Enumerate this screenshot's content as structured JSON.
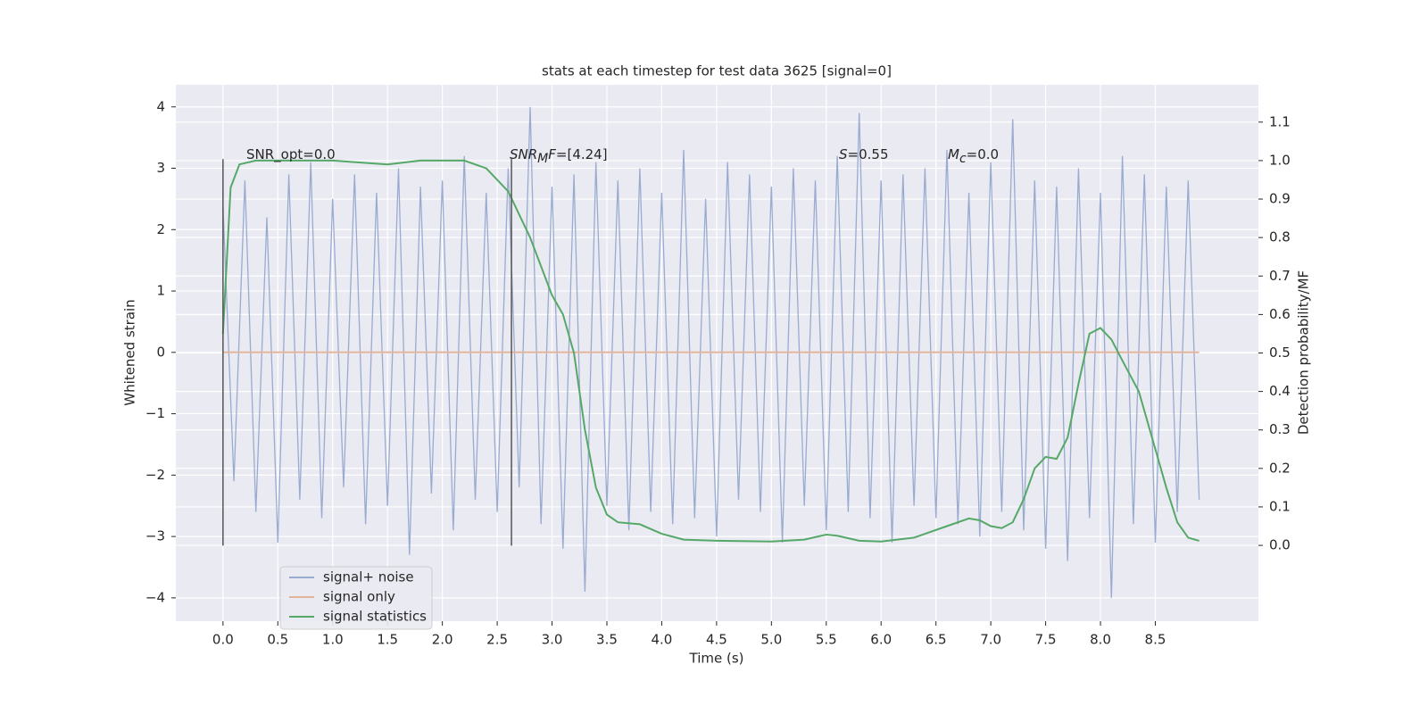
{
  "chart_data": {
    "type": "line",
    "title": "stats at each timestep for test data 3625 [signal=0]",
    "xlabel": "Time (s)",
    "ylabel": "Whitened strain",
    "y2label": "Detection probability/MF",
    "xlim": [
      -0.43,
      9.44
    ],
    "ylim": [
      -4.38,
      4.36
    ],
    "y2lim": [
      -0.197,
      1.197
    ],
    "xticks": [
      {
        "value": 0,
        "label": "0.0"
      },
      0.5,
      {
        "value": 1,
        "label": "1.0"
      },
      1.5,
      {
        "value": 2,
        "label": "2.0"
      },
      2.5,
      {
        "value": 3,
        "label": "3.0"
      },
      3.5,
      {
        "value": 4,
        "label": "4.0"
      },
      4.5,
      {
        "value": 5,
        "label": "5.0"
      },
      5.5,
      {
        "value": 6,
        "label": "6.0"
      },
      6.5,
      {
        "value": 7,
        "label": "7.0"
      },
      7.5,
      {
        "value": 8,
        "label": "8.0"
      },
      8.5
    ],
    "yticks": [
      {
        "value": -4,
        "label": "−4"
      },
      {
        "value": -3,
        "label": "−3"
      },
      {
        "value": -2,
        "label": "−2"
      },
      {
        "value": -1,
        "label": "−1"
      },
      0,
      1,
      2,
      3,
      4
    ],
    "y2ticks": [
      {
        "value": 0,
        "label": "0.0"
      },
      0.1,
      0.2,
      0.3,
      0.4,
      0.5,
      0.6,
      0.7,
      0.8,
      0.9,
      {
        "value": 1,
        "label": "1.0"
      },
      1.1
    ],
    "grid": true,
    "legend": "lower left",
    "series": [
      {
        "name": "signal+ noise",
        "color": "#9aabd0",
        "x": [
          0.0,
          0.1,
          0.2,
          0.3,
          0.4,
          0.5,
          0.6,
          0.7,
          0.8,
          0.9,
          1.0,
          1.1,
          1.2,
          1.3,
          1.4,
          1.5,
          1.6,
          1.7,
          1.8,
          1.9,
          2.0,
          2.1,
          2.2,
          2.3,
          2.4,
          2.5,
          2.6,
          2.7,
          2.8,
          2.9,
          3.0,
          3.1,
          3.2,
          3.3,
          3.4,
          3.5,
          3.6,
          3.7,
          3.8,
          3.9,
          4.0,
          4.1,
          4.2,
          4.3,
          4.4,
          4.5,
          4.6,
          4.7,
          4.8,
          4.9,
          5.0,
          5.1,
          5.2,
          5.3,
          5.4,
          5.5,
          5.6,
          5.7,
          5.8,
          5.9,
          6.0,
          6.1,
          6.2,
          6.3,
          6.4,
          6.5,
          6.6,
          6.7,
          6.8,
          6.9,
          7.0,
          7.1,
          7.2,
          7.3,
          7.4,
          7.5,
          7.6,
          7.7,
          7.8,
          7.9,
          8.0,
          8.1,
          8.2,
          8.3,
          8.4,
          8.5,
          8.6,
          8.7,
          8.8,
          8.9
        ],
        "values": [
          2.4,
          -2.1,
          2.8,
          -2.6,
          2.2,
          -3.1,
          2.9,
          -2.4,
          3.1,
          -2.7,
          2.5,
          -2.2,
          2.9,
          -2.8,
          2.6,
          -2.5,
          3.0,
          -3.3,
          2.7,
          -2.3,
          2.8,
          -2.9,
          3.2,
          -2.4,
          2.6,
          -2.6,
          3.0,
          -2.2,
          4.0,
          -2.8,
          2.7,
          -3.2,
          2.9,
          -3.9,
          3.1,
          -2.5,
          2.8,
          -2.9,
          3.0,
          -2.6,
          2.6,
          -2.8,
          3.3,
          -2.7,
          2.5,
          -3.0,
          3.1,
          -2.4,
          2.9,
          -2.6,
          2.7,
          -3.1,
          3.0,
          -2.5,
          2.8,
          -2.9,
          3.2,
          -2.6,
          3.9,
          -2.7,
          2.8,
          -3.1,
          2.9,
          -2.5,
          3.0,
          -2.7,
          3.3,
          -2.8,
          2.6,
          -3.0,
          3.1,
          -2.6,
          3.8,
          -2.9,
          2.8,
          -3.2,
          2.7,
          -3.4,
          3.0,
          -2.7,
          2.6,
          -4.0,
          3.2,
          -2.8,
          2.9,
          -3.1,
          2.7,
          -2.6,
          2.8,
          -2.4
        ]
      },
      {
        "name": "signal only",
        "color": "#e3b49c",
        "x": [
          0.0,
          8.9
        ],
        "values": [
          0,
          0
        ]
      },
      {
        "name": "signal statistics",
        "color": "#55a868",
        "axis": "y2",
        "x": [
          0.0,
          0.07,
          0.15,
          0.3,
          1.0,
          1.5,
          1.8,
          2.2,
          2.4,
          2.6,
          2.8,
          3.0,
          3.1,
          3.2,
          3.3,
          3.4,
          3.5,
          3.6,
          3.8,
          4.0,
          4.2,
          4.5,
          5.0,
          5.3,
          5.5,
          5.6,
          5.8,
          6.0,
          6.3,
          6.6,
          6.8,
          6.9,
          7.0,
          7.1,
          7.2,
          7.3,
          7.4,
          7.5,
          7.6,
          7.7,
          7.8,
          7.9,
          8.0,
          8.1,
          8.2,
          8.35,
          8.5,
          8.6,
          8.7,
          8.8,
          8.9
        ],
        "values": [
          0.55,
          0.93,
          0.99,
          1.0,
          1.0,
          0.99,
          1.0,
          1.0,
          0.98,
          0.92,
          0.8,
          0.65,
          0.6,
          0.5,
          0.3,
          0.15,
          0.08,
          0.06,
          0.055,
          0.03,
          0.015,
          0.012,
          0.01,
          0.015,
          0.028,
          0.025,
          0.012,
          0.01,
          0.02,
          0.05,
          0.07,
          0.065,
          0.05,
          0.045,
          0.06,
          0.12,
          0.2,
          0.23,
          0.225,
          0.28,
          0.42,
          0.55,
          0.565,
          0.535,
          0.48,
          0.4,
          0.25,
          0.15,
          0.06,
          0.02,
          0.012
        ]
      }
    ],
    "vlines": {
      "x": [
        0,
        2.63
      ],
      "ymin": -3.15,
      "ymax": 3.15,
      "color": "#555555"
    },
    "annotations": [
      [
        {
          "text": "SNR_opt=0.0",
          "style": "normal"
        }
      ],
      [
        {
          "text": "SNR",
          "style": "italic"
        },
        {
          "text": "M",
          "style": "sub"
        },
        {
          "text": "F",
          "style": "italic"
        },
        {
          "text": "=[4.24]",
          "style": "normal"
        }
      ],
      [
        {
          "text": "S",
          "style": "italic"
        },
        {
          "text": "=0.55",
          "style": "normal"
        }
      ],
      [
        {
          "text": "M",
          "style": "italic"
        },
        {
          "text": "c",
          "style": "sub"
        },
        {
          "text": "=0.0",
          "style": "normal"
        }
      ]
    ]
  }
}
